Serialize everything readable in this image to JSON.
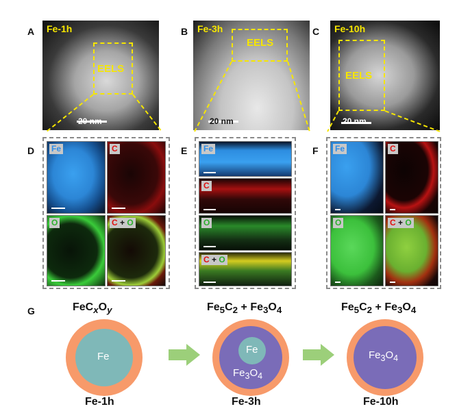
{
  "panels": {
    "A": {
      "letter": "A",
      "label": "Fe-1h",
      "eels": "EELS",
      "scale": "20 nm"
    },
    "B": {
      "letter": "B",
      "label": "Fe-3h",
      "eels": "EELS",
      "scale": "20 nm"
    },
    "C": {
      "letter": "C",
      "label": "Fe-10h",
      "eels": "EELS",
      "scale": "20 nm"
    },
    "D": {
      "letter": "D"
    },
    "E": {
      "letter": "E"
    },
    "F": {
      "letter": "F"
    },
    "G": {
      "letter": "G"
    }
  },
  "element_tags": {
    "fe": "Fe",
    "c": "C",
    "o": "O",
    "plus": "+"
  },
  "schematic": {
    "formula1": {
      "main": "FeC",
      "sub1": "x",
      "mid": "O",
      "sub2": "y"
    },
    "formula2": {
      "a": "Fe",
      "a_sub": "5",
      "b": "C",
      "b_sub": "2",
      "plus": " + ",
      "c": "Fe",
      "c_sub": "3",
      "d": "O",
      "d_sub": "4"
    },
    "formula3": {
      "a": "Fe",
      "a_sub": "5",
      "b": "C",
      "b_sub": "2",
      "plus": " + ",
      "c": "Fe",
      "c_sub": "3",
      "d": "O",
      "d_sub": "4"
    },
    "core1": "Fe",
    "core2": "Fe",
    "shell2": {
      "a": "Fe",
      "a_sub": "3",
      "b": "O",
      "b_sub": "4"
    },
    "core3": {
      "a": "Fe",
      "a_sub": "3",
      "b": "O",
      "b_sub": "4"
    },
    "captions": [
      "Fe-1h",
      "Fe-3h",
      "Fe-10h"
    ]
  },
  "colors": {
    "shell": "#f79a6a",
    "fe_core": "#7fb8b8",
    "fe3o4": "#7a6cb8",
    "arrow": "#9ccf7a",
    "eels_yellow": "#f6e600"
  }
}
